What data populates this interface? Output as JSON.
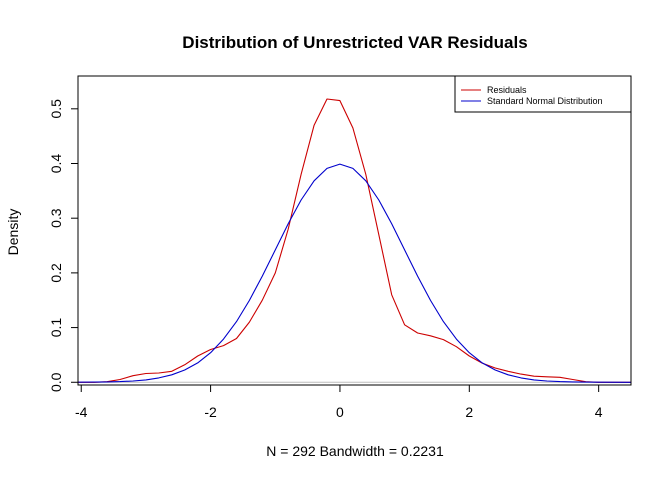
{
  "chart_data": {
    "type": "line",
    "title": "Distribution of Unrestricted VAR Residuals",
    "xlabel": "N = 292   Bandwidth = 0.2231",
    "ylabel": "Density",
    "xlim": [
      -4.05,
      4.5
    ],
    "ylim": [
      -0.005,
      0.56
    ],
    "xticks": [
      "-4",
      "-2",
      "0",
      "2",
      "4"
    ],
    "yticks": [
      "0.0",
      "0.1",
      "0.2",
      "0.3",
      "0.4",
      "0.5"
    ],
    "baseline": {
      "y": 0,
      "color": "#bebebe"
    },
    "legend": {
      "position": "top-right"
    },
    "series": [
      {
        "name": "Residuals",
        "color": "#cc0000",
        "x": [
          -4.05,
          -3.8,
          -3.6,
          -3.4,
          -3.2,
          -3.0,
          -2.8,
          -2.6,
          -2.4,
          -2.2,
          -2.0,
          -1.8,
          -1.6,
          -1.4,
          -1.2,
          -1.0,
          -0.8,
          -0.6,
          -0.4,
          -0.2,
          0.0,
          0.2,
          0.4,
          0.6,
          0.8,
          1.0,
          1.2,
          1.4,
          1.6,
          1.8,
          2.0,
          2.2,
          2.4,
          2.6,
          2.8,
          3.0,
          3.2,
          3.4,
          3.6,
          3.8,
          4.0,
          4.5
        ],
        "y": [
          0.0,
          0.0,
          0.001,
          0.005,
          0.012,
          0.016,
          0.017,
          0.02,
          0.032,
          0.048,
          0.06,
          0.067,
          0.08,
          0.11,
          0.15,
          0.2,
          0.28,
          0.38,
          0.47,
          0.518,
          0.515,
          0.465,
          0.38,
          0.27,
          0.16,
          0.105,
          0.09,
          0.085,
          0.078,
          0.065,
          0.048,
          0.035,
          0.026,
          0.02,
          0.015,
          0.011,
          0.01,
          0.009,
          0.005,
          0.001,
          0.0,
          0.0
        ]
      },
      {
        "name": "Standard Normal Distribution",
        "color": "#0000cc",
        "x": [
          -4.05,
          -3.8,
          -3.6,
          -3.4,
          -3.2,
          -3.0,
          -2.8,
          -2.6,
          -2.4,
          -2.2,
          -2.0,
          -1.8,
          -1.6,
          -1.4,
          -1.2,
          -1.0,
          -0.8,
          -0.6,
          -0.4,
          -0.2,
          0.0,
          0.2,
          0.4,
          0.6,
          0.8,
          1.0,
          1.2,
          1.4,
          1.6,
          1.8,
          2.0,
          2.2,
          2.4,
          2.6,
          2.8,
          3.0,
          3.2,
          3.4,
          3.6,
          3.8,
          4.0,
          4.5
        ],
        "y": [
          0.0001,
          0.0003,
          0.0006,
          0.0012,
          0.0024,
          0.0044,
          0.0079,
          0.0136,
          0.0224,
          0.0355,
          0.054,
          0.079,
          0.1109,
          0.1497,
          0.1942,
          0.242,
          0.2897,
          0.3332,
          0.3683,
          0.391,
          0.3989,
          0.391,
          0.3683,
          0.3332,
          0.2897,
          0.242,
          0.1942,
          0.1497,
          0.1109,
          0.079,
          0.054,
          0.0355,
          0.0224,
          0.0136,
          0.0079,
          0.0044,
          0.0024,
          0.0012,
          0.0006,
          0.0003,
          0.0001,
          0.0
        ]
      }
    ]
  }
}
